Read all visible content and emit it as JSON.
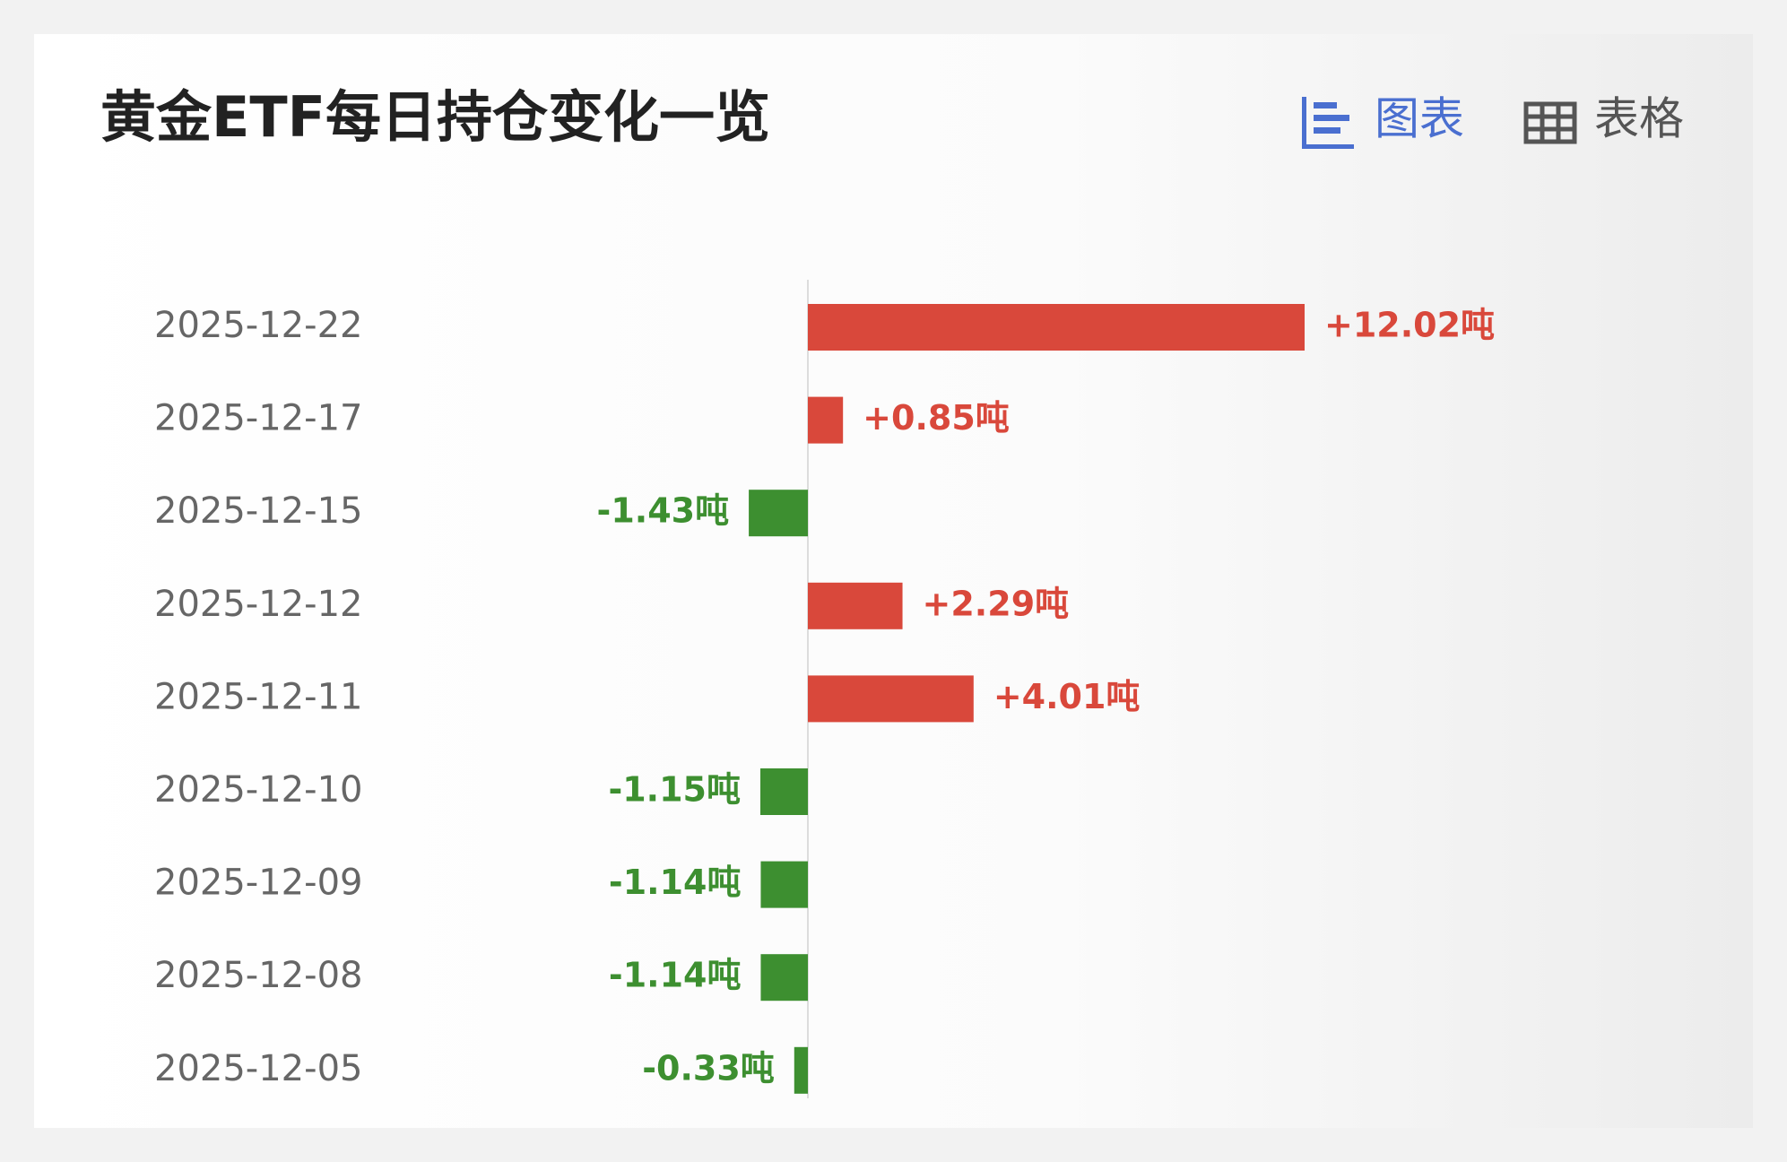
{
  "tabs": [
    "图表",
    "表格"
  ],
  "chart_data": {
    "type": "hbar",
    "title": "黄金ETF每日持仓变化一览",
    "categories": [
      "2025-12-22",
      "2025-12-17",
      "2025-12-15",
      "2025-12-12",
      "2025-12-11",
      "2025-12-10",
      "2025-12-09",
      "2025-12-08",
      "2025-12-05"
    ],
    "values": [
      12.02,
      0.85,
      -1.43,
      2.29,
      4.01,
      -1.15,
      -1.14,
      -1.14,
      -0.33
    ],
    "value_labels": [
      "+12.02吨",
      "+0.85吨",
      "-1.43吨",
      "+2.29吨",
      "+4.01吨",
      "-1.15吨",
      "-1.14吨",
      "-1.14吨",
      "-0.33吨"
    ],
    "positive_color": "#d9483b",
    "negative_color": "#3d8f30"
  }
}
